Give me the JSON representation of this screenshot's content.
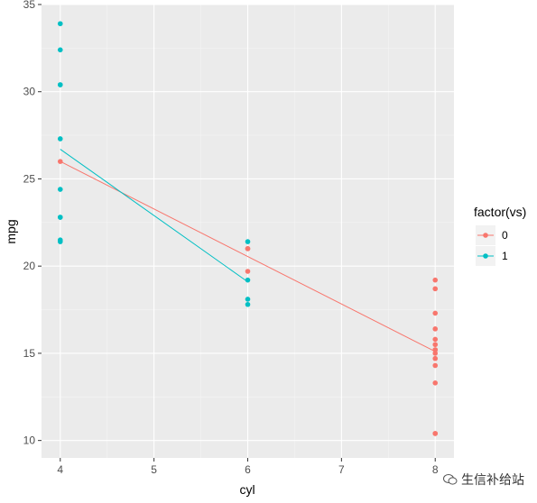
{
  "chart_data": {
    "type": "scatter",
    "xlabel": "cyl",
    "ylabel": "mpg",
    "xlim": [
      3.8,
      8.2
    ],
    "ylim": [
      9.0,
      35.0
    ],
    "x_ticks": [
      4,
      5,
      6,
      7,
      8
    ],
    "y_ticks": [
      10,
      15,
      20,
      25,
      30,
      35
    ],
    "grid": true,
    "legend": {
      "title": "factor(vs)",
      "position": "right"
    },
    "series": [
      {
        "name": "0",
        "color": "#F8766D",
        "points": [
          [
            4,
            26.0
          ],
          [
            6,
            21.0
          ],
          [
            6,
            21.0
          ],
          [
            6,
            19.7
          ],
          [
            8,
            18.7
          ],
          [
            8,
            14.3
          ],
          [
            8,
            16.4
          ],
          [
            8,
            17.3
          ],
          [
            8,
            15.2
          ],
          [
            8,
            10.4
          ],
          [
            8,
            10.4
          ],
          [
            8,
            14.7
          ],
          [
            8,
            15.5
          ],
          [
            8,
            15.2
          ],
          [
            8,
            13.3
          ],
          [
            8,
            19.2
          ],
          [
            8,
            15.8
          ],
          [
            8,
            15.0
          ]
        ],
        "fit_line": [
          [
            4,
            26.0
          ],
          [
            8,
            15.1
          ]
        ]
      },
      {
        "name": "1",
        "color": "#00BFC4",
        "points": [
          [
            4,
            22.8
          ],
          [
            4,
            24.4
          ],
          [
            4,
            22.8
          ],
          [
            4,
            32.4
          ],
          [
            4,
            30.4
          ],
          [
            4,
            33.9
          ],
          [
            4,
            21.5
          ],
          [
            4,
            27.3
          ],
          [
            4,
            21.4
          ],
          [
            4,
            30.4
          ],
          [
            6,
            21.4
          ],
          [
            6,
            18.1
          ],
          [
            6,
            19.2
          ],
          [
            6,
            17.8
          ]
        ],
        "fit_line": [
          [
            4,
            26.7
          ],
          [
            6,
            19.1
          ]
        ]
      }
    ]
  },
  "watermark": {
    "text": "生信补给站",
    "icon": "wechat-icon"
  }
}
